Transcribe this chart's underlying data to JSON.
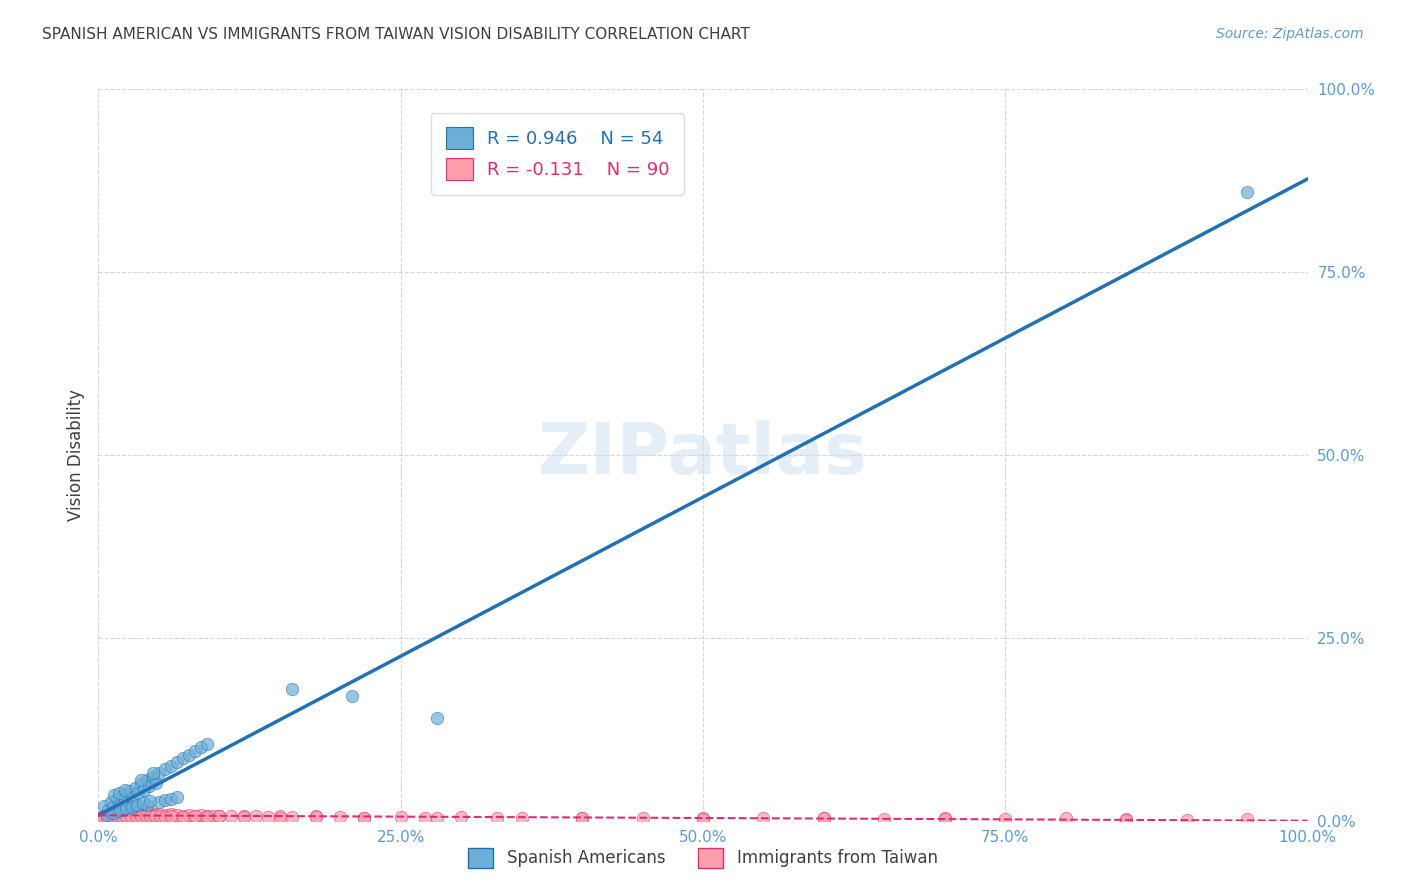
{
  "title": "SPANISH AMERICAN VS IMMIGRANTS FROM TAIWAN VISION DISABILITY CORRELATION CHART",
  "source": "Source: ZipAtlas.com",
  "ylabel": "Vision Disability",
  "xlabel": "",
  "watermark": "ZIPatlas",
  "blue_R": 0.946,
  "blue_N": 54,
  "pink_R": -0.131,
  "pink_N": 90,
  "blue_color": "#6baed6",
  "blue_line_color": "#2171b5",
  "pink_color": "#fc9faa",
  "pink_line_color": "#de2d78",
  "background_color": "#ffffff",
  "grid_color": "#cccccc",
  "tick_color": "#5b9bd5",
  "title_color": "#404040",
  "xlim": [
    0,
    1
  ],
  "ylim": [
    0,
    1
  ],
  "xticks": [
    0.0,
    0.25,
    0.5,
    0.75,
    1.0
  ],
  "yticks": [
    0.0,
    0.25,
    0.5,
    0.75,
    1.0
  ],
  "blue_scatter_x": [
    0.005,
    0.008,
    0.01,
    0.012,
    0.015,
    0.018,
    0.02,
    0.022,
    0.025,
    0.028,
    0.03,
    0.033,
    0.035,
    0.038,
    0.04,
    0.042,
    0.045,
    0.048,
    0.05,
    0.055,
    0.06,
    0.065,
    0.07,
    0.075,
    0.08,
    0.085,
    0.09,
    0.01,
    0.015,
    0.02,
    0.025,
    0.03,
    0.04,
    0.05,
    0.055,
    0.06,
    0.065,
    0.007,
    0.012,
    0.018,
    0.023,
    0.028,
    0.032,
    0.037,
    0.043,
    0.013,
    0.017,
    0.022,
    0.035,
    0.045,
    0.16,
    0.21,
    0.28,
    0.95
  ],
  "blue_scatter_y": [
    0.02,
    0.015,
    0.025,
    0.018,
    0.03,
    0.022,
    0.035,
    0.028,
    0.04,
    0.033,
    0.045,
    0.038,
    0.05,
    0.042,
    0.055,
    0.048,
    0.06,
    0.052,
    0.065,
    0.07,
    0.075,
    0.08,
    0.085,
    0.09,
    0.095,
    0.1,
    0.105,
    0.01,
    0.012,
    0.015,
    0.018,
    0.02,
    0.022,
    0.025,
    0.028,
    0.03,
    0.032,
    0.008,
    0.011,
    0.014,
    0.017,
    0.019,
    0.021,
    0.024,
    0.027,
    0.035,
    0.038,
    0.042,
    0.055,
    0.065,
    0.18,
    0.17,
    0.14,
    0.86
  ],
  "pink_scatter_x": [
    0.002,
    0.004,
    0.006,
    0.008,
    0.01,
    0.012,
    0.014,
    0.016,
    0.018,
    0.02,
    0.022,
    0.024,
    0.026,
    0.028,
    0.03,
    0.032,
    0.034,
    0.036,
    0.038,
    0.04,
    0.042,
    0.044,
    0.046,
    0.048,
    0.05,
    0.055,
    0.06,
    0.065,
    0.07,
    0.075,
    0.08,
    0.085,
    0.09,
    0.095,
    0.1,
    0.11,
    0.12,
    0.13,
    0.14,
    0.15,
    0.16,
    0.18,
    0.2,
    0.22,
    0.25,
    0.28,
    0.3,
    0.35,
    0.4,
    0.45,
    0.5,
    0.55,
    0.6,
    0.65,
    0.7,
    0.75,
    0.8,
    0.85,
    0.9,
    0.95,
    0.003,
    0.007,
    0.011,
    0.015,
    0.019,
    0.023,
    0.027,
    0.031,
    0.035,
    0.039,
    0.043,
    0.047,
    0.051,
    0.055,
    0.06,
    0.07,
    0.08,
    0.09,
    0.1,
    0.12,
    0.15,
    0.18,
    0.22,
    0.27,
    0.33,
    0.4,
    0.5,
    0.6,
    0.7,
    0.85
  ],
  "pink_scatter_y": [
    0.005,
    0.006,
    0.007,
    0.006,
    0.007,
    0.008,
    0.007,
    0.008,
    0.009,
    0.008,
    0.009,
    0.01,
    0.009,
    0.01,
    0.009,
    0.01,
    0.009,
    0.01,
    0.009,
    0.008,
    0.009,
    0.008,
    0.009,
    0.008,
    0.009,
    0.008,
    0.009,
    0.008,
    0.007,
    0.008,
    0.007,
    0.008,
    0.007,
    0.006,
    0.007,
    0.006,
    0.007,
    0.006,
    0.005,
    0.006,
    0.005,
    0.006,
    0.005,
    0.004,
    0.005,
    0.004,
    0.005,
    0.004,
    0.003,
    0.004,
    0.003,
    0.004,
    0.003,
    0.002,
    0.003,
    0.002,
    0.003,
    0.002,
    0.001,
    0.002,
    0.004,
    0.005,
    0.006,
    0.007,
    0.006,
    0.007,
    0.006,
    0.007,
    0.006,
    0.007,
    0.006,
    0.007,
    0.006,
    0.005,
    0.006,
    0.005,
    0.006,
    0.005,
    0.006,
    0.005,
    0.004,
    0.005,
    0.004,
    0.003,
    0.004,
    0.003,
    0.002,
    0.003,
    0.002,
    0.001
  ]
}
